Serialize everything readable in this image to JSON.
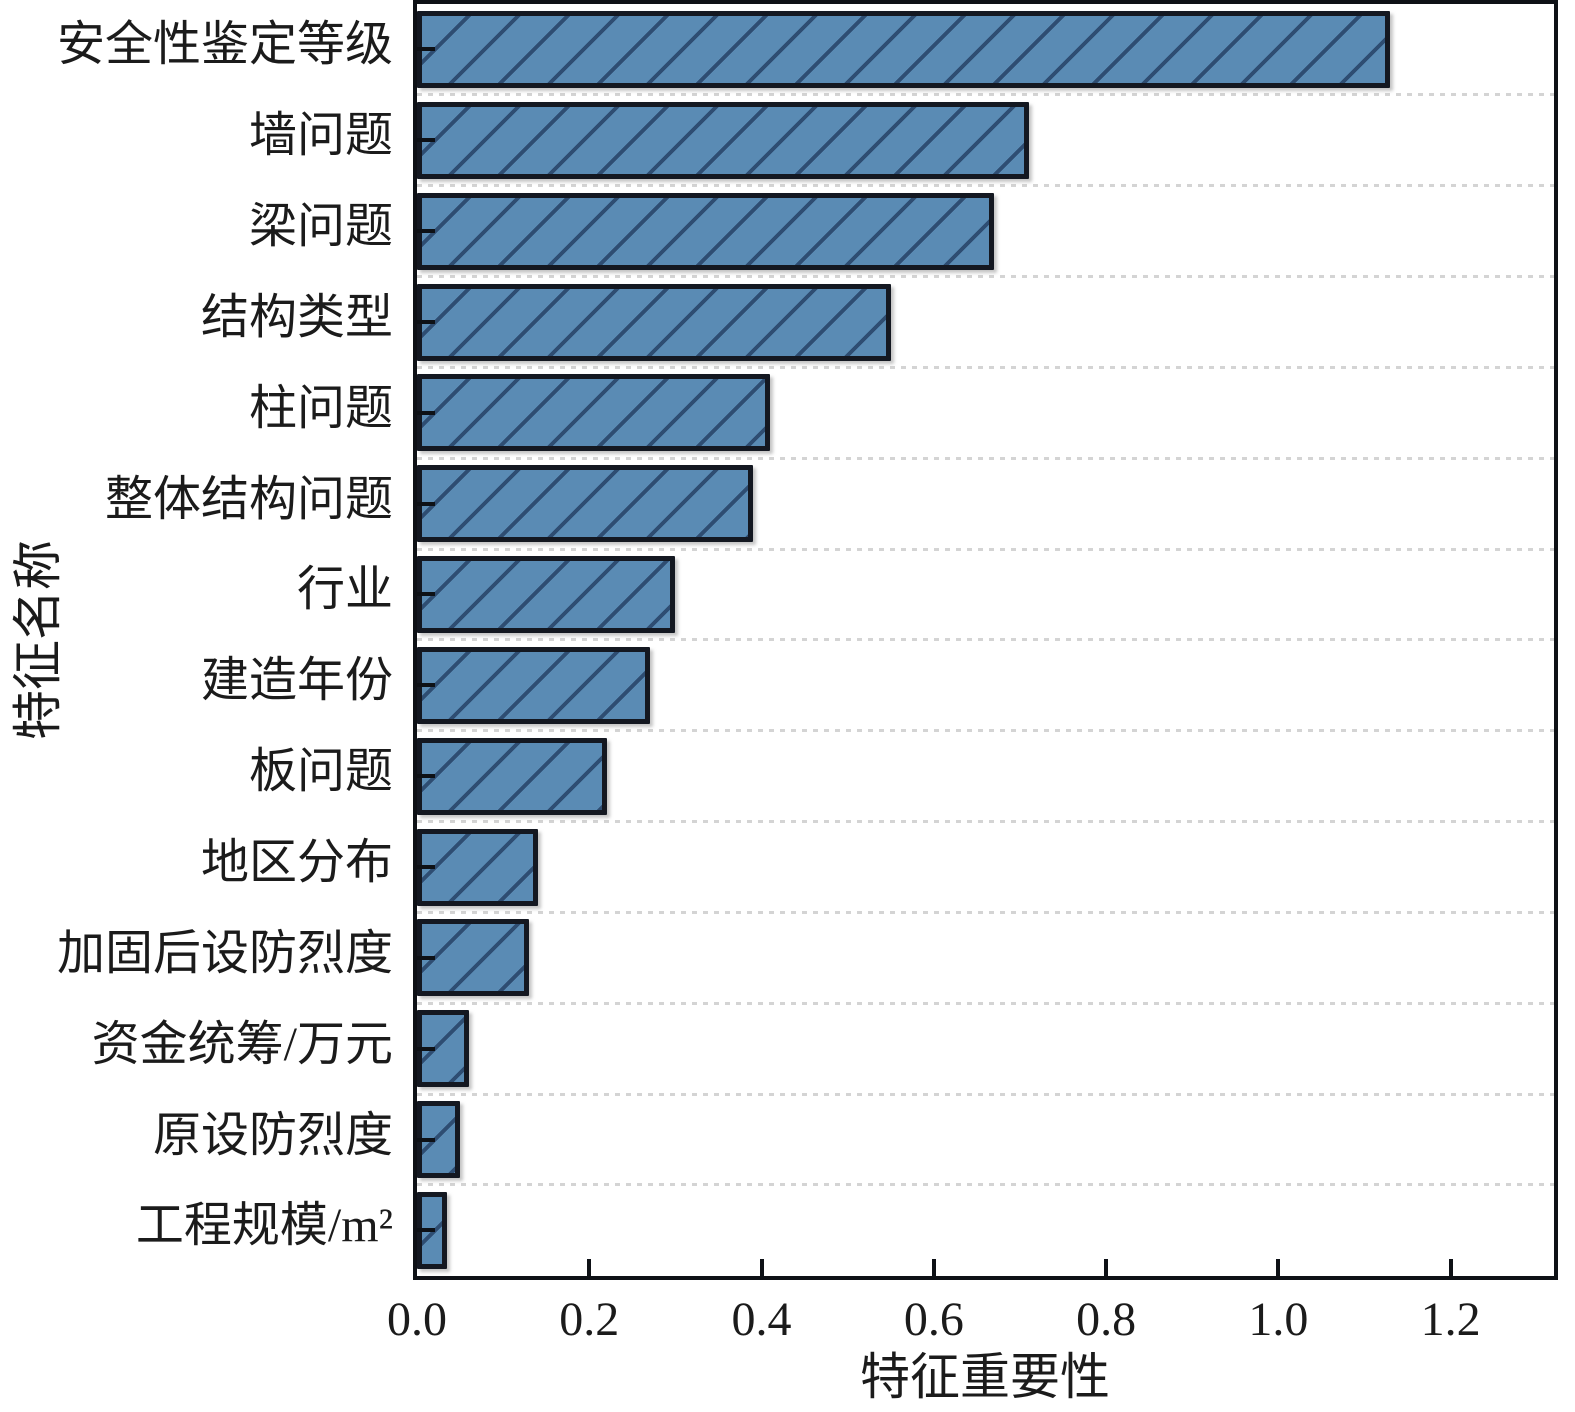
{
  "chart_data": {
    "type": "bar",
    "orientation": "horizontal",
    "xlabel": "特征重要性",
    "ylabel": "特征名称",
    "categories": [
      "安全性鉴定等级",
      "墙问题",
      "梁问题",
      "结构类型",
      "柱问题",
      "整体结构问题",
      "行业",
      "建造年份",
      "板问题",
      "地区分布",
      "加固后设防烈度",
      "资金统筹/万元",
      "原设防烈度",
      "工程规模/m²"
    ],
    "values": [
      1.13,
      0.71,
      0.67,
      0.55,
      0.41,
      0.39,
      0.3,
      0.27,
      0.22,
      0.14,
      0.13,
      0.06,
      0.05,
      0.035
    ],
    "xticks": [
      0.0,
      0.2,
      0.4,
      0.6,
      0.8,
      1.0,
      1.2
    ],
    "xtick_labels": [
      "0.0",
      "0.2",
      "0.4",
      "0.6",
      "0.8",
      "1.0",
      "1.2"
    ],
    "xlim": [
      0,
      1.32
    ],
    "grid": "dashed horizontal lines between category rows",
    "legend": "none",
    "bar_color": "#5a8bb4",
    "hatch_pattern": "/",
    "hatch_color": "#2e4d72",
    "edge_color": "#141821",
    "spine_color": "#0e1116",
    "grid_color": "#d4d4d4"
  }
}
